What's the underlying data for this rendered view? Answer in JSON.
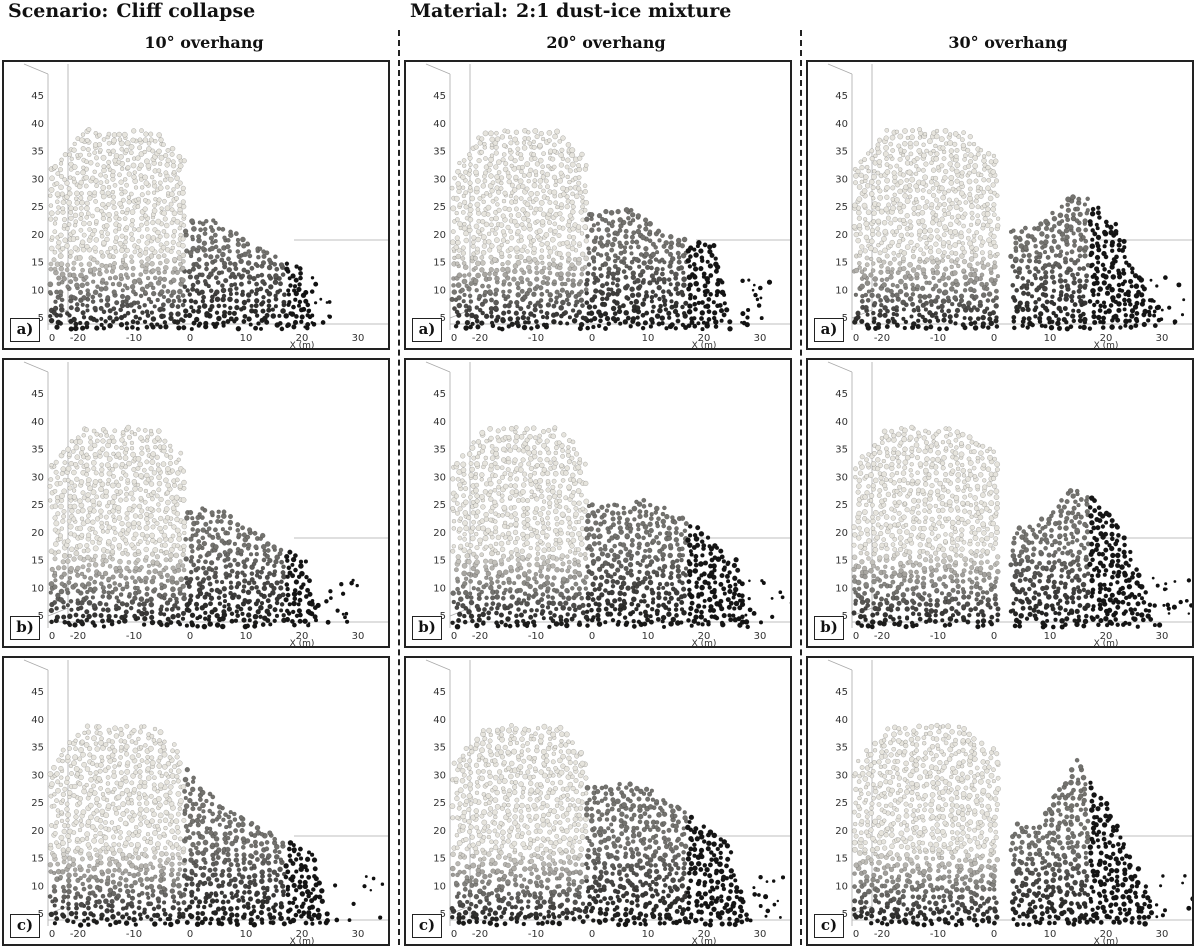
{
  "header": {
    "scenario_label": "Scenario:",
    "scenario_value": "Cliff collapse",
    "material_label": "Material:",
    "material_value": "2:1 dust-ice mixture"
  },
  "columns": [
    {
      "title": "10° overhang",
      "angle": 10
    },
    {
      "title": "20° overhang",
      "angle": 20
    },
    {
      "title": "30° overhang",
      "angle": 30
    }
  ],
  "rows": [
    {
      "label": "a)"
    },
    {
      "label": "b)"
    },
    {
      "label": "c)"
    }
  ],
  "axes": {
    "x_title": "X (m)",
    "x_ticks": [
      "-20",
      "-10",
      "0",
      "10",
      "20",
      "30"
    ],
    "x_origin_label": "0",
    "y_ticks": [
      "5",
      "10",
      "15",
      "20",
      "25",
      "30",
      "35",
      "40",
      "45"
    ]
  },
  "colors": {
    "particle_light": "#e6e3dc",
    "particle_dark": "#111111",
    "frame": "#222222"
  }
}
